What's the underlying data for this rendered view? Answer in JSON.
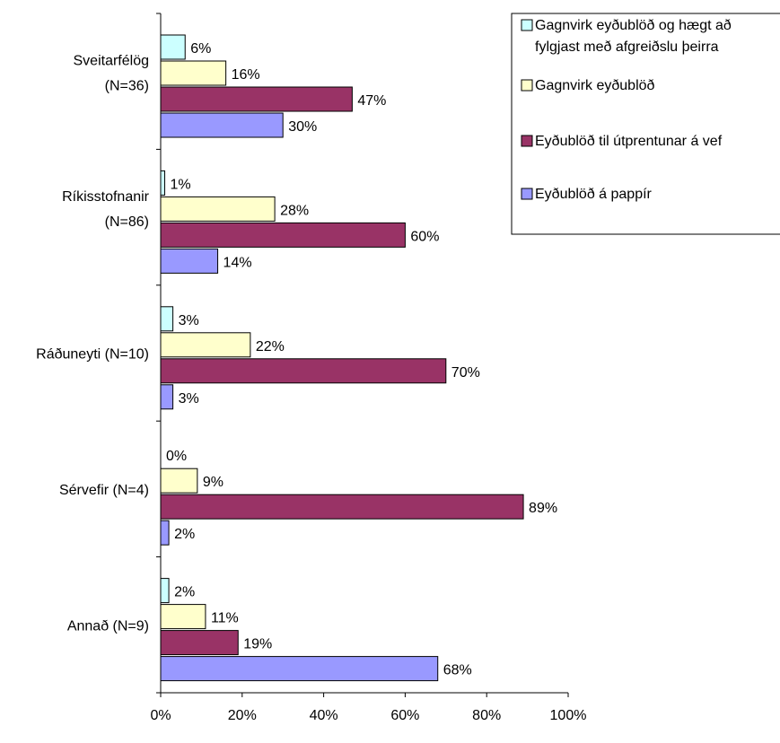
{
  "chart_data": {
    "type": "bar",
    "orientation": "horizontal",
    "categories": [
      "Sveitarfélög (N=36)",
      "Ríkisstofnanir (N=86)",
      "Ráðuneyti (N=10)",
      "Sérvefir (N=4)",
      "Annað (N=9)"
    ],
    "category_lines": [
      [
        "Sveitarfélög",
        "(N=36)"
      ],
      [
        "Ríkisstofnanir",
        "(N=86)"
      ],
      [
        "Ráðuneyti (N=10)"
      ],
      [
        "Sérvefir (N=4)"
      ],
      [
        "Annað (N=9)"
      ]
    ],
    "series": [
      {
        "name": "Gagnvirk eyðublöð og hægt að fylgjast með afgreiðslu þeirra",
        "legend_lines": [
          "Gagnvirk eyðublöð og hægt að",
          "fylgjast með afgreiðslu þeirra"
        ],
        "color": "#CCFFFF",
        "values": [
          6,
          1,
          3,
          0,
          2
        ],
        "labels": [
          "6%",
          "1%",
          "3%",
          "0%",
          "2%"
        ]
      },
      {
        "name": "Gagnvirk eyðublöð",
        "legend_lines": [
          "Gagnvirk eyðublöð"
        ],
        "color": "#FFFFCC",
        "values": [
          16,
          28,
          22,
          9,
          11
        ],
        "labels": [
          "16%",
          "28%",
          "22%",
          "9%",
          "11%"
        ]
      },
      {
        "name": "Eyðublöð til útprentunar á vef",
        "legend_lines": [
          "Eyðublöð til útprentunar á vef"
        ],
        "color": "#993366",
        "values": [
          47,
          60,
          70,
          89,
          19
        ],
        "labels": [
          "47%",
          "60%",
          "70%",
          "89%",
          "19%"
        ]
      },
      {
        "name": "Eyðublöð á pappír",
        "legend_lines": [
          "Eyðublöð á pappír"
        ],
        "color": "#9999FF",
        "values": [
          30,
          14,
          3,
          2,
          68
        ],
        "labels": [
          "30%",
          "14%",
          "3%",
          "2%",
          "68%"
        ]
      }
    ],
    "x_ticks": [
      "0%",
      "20%",
      "40%",
      "60%",
      "80%",
      "100%"
    ],
    "xlim": [
      0,
      100
    ],
    "xlabel": "",
    "ylabel": "",
    "title": "",
    "grid": false,
    "legend_position": "top-right"
  }
}
